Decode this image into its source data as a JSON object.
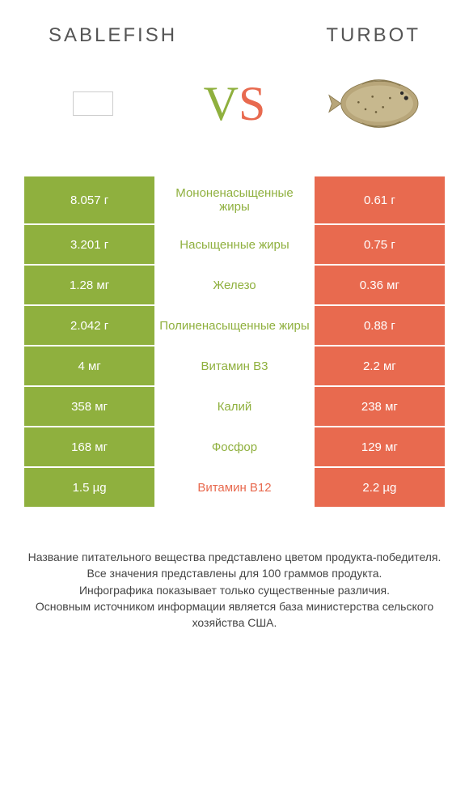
{
  "colors": {
    "green": "#8fb03e",
    "orange": "#e86a4f",
    "text_dark": "#555555"
  },
  "header": {
    "left": "Sablefish",
    "right": "Turbot"
  },
  "vs": {
    "v": "V",
    "s": "S"
  },
  "rows": [
    {
      "left": "8.057 г",
      "mid": "Мононенасыщенные жиры",
      "right": "0.61 г",
      "winner": "left"
    },
    {
      "left": "3.201 г",
      "mid": "Насыщенные жиры",
      "right": "0.75 г",
      "winner": "left"
    },
    {
      "left": "1.28 мг",
      "mid": "Железо",
      "right": "0.36 мг",
      "winner": "left"
    },
    {
      "left": "2.042 г",
      "mid": "Полиненасыщенные жиры",
      "right": "0.88 г",
      "winner": "left"
    },
    {
      "left": "4 мг",
      "mid": "Витамин B3",
      "right": "2.2 мг",
      "winner": "left"
    },
    {
      "left": "358 мг",
      "mid": "Калий",
      "right": "238 мг",
      "winner": "left"
    },
    {
      "left": "168 мг",
      "mid": "Фосфор",
      "right": "129 мг",
      "winner": "left"
    },
    {
      "left": "1.5 µg",
      "mid": "Витамин B12",
      "right": "2.2 µg",
      "winner": "right"
    }
  ],
  "footer": {
    "line1": "Название питательного вещества представлено цветом продукта-победителя.",
    "line2": "Все значения представлены для 100 граммов продукта.",
    "line3": "Инфографика показывает только существенные различия.",
    "line4": "Основным источником информации является база министерства сельского хозяйства США."
  }
}
